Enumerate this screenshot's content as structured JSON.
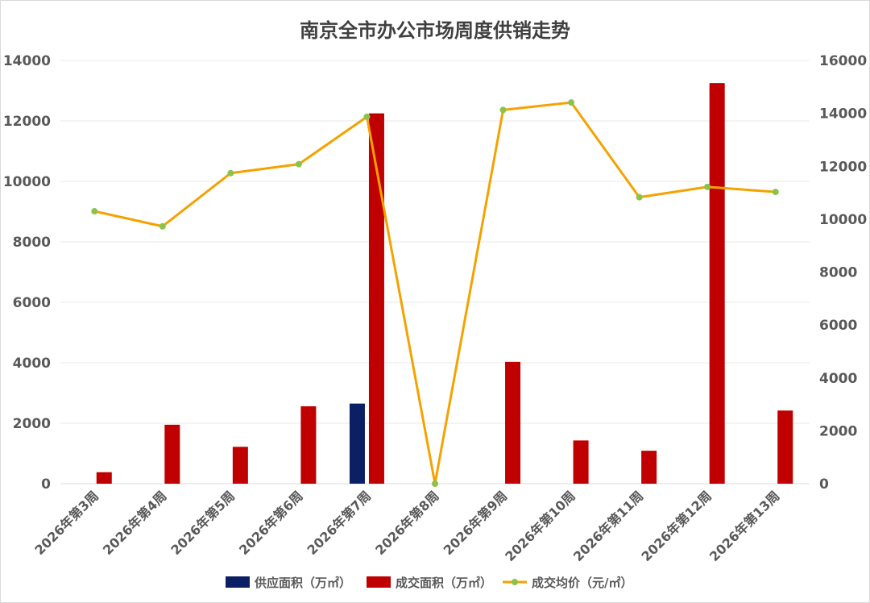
{
  "chart_data": {
    "type": "bar",
    "title": "南京全市办公市场周度供销走势",
    "categories": [
      "2026年第3周",
      "2026年第4周",
      "2026年第5周",
      "2026年第6周",
      "2026年第7周",
      "2026年第8周",
      "2026年第9周",
      "2026年第10周",
      "2026年第11周",
      "2026年第12周",
      "2026年第13周"
    ],
    "series": [
      {
        "name": "供应面积（万㎡）",
        "type": "bar",
        "axis": "left",
        "color": "#0b1f64",
        "values": [
          0,
          0,
          0,
          0,
          2650,
          0,
          0,
          0,
          0,
          0,
          0
        ]
      },
      {
        "name": "成交面积（万㎡）",
        "type": "bar",
        "axis": "left",
        "color": "#c00000",
        "values": [
          380,
          1950,
          1220,
          2560,
          12250,
          0,
          4030,
          1430,
          1090,
          13250,
          2420
        ]
      },
      {
        "name": "成交均价（元/㎡）",
        "type": "line",
        "axis": "right",
        "color": "#f5a200",
        "marker_color": "#8bc34a",
        "values": [
          10300,
          9730,
          11740,
          12080,
          13870,
          0,
          14130,
          14410,
          10830,
          11220,
          11030
        ]
      }
    ],
    "y_left": {
      "min": 0,
      "max": 14000,
      "ticks": [
        0,
        2000,
        4000,
        6000,
        8000,
        10000,
        12000,
        14000
      ]
    },
    "y_right": {
      "min": 0,
      "max": 16000,
      "ticks": [
        0,
        2000,
        4000,
        6000,
        8000,
        10000,
        12000,
        14000,
        16000
      ]
    },
    "grid": true,
    "legend_position": "bottom"
  }
}
